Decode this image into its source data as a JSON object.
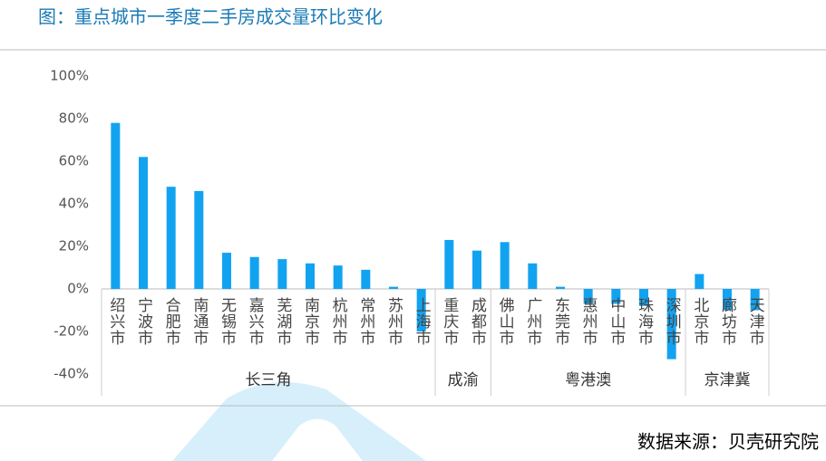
{
  "chart_data": {
    "type": "bar",
    "title": "图：重点城市一季度二手房成交量环比变化",
    "source": "数据来源：贝壳研究院",
    "color": "#12a3f0",
    "groups": [
      {
        "name": "长三角",
        "categories": [
          "绍兴市",
          "宁波市",
          "合肥市",
          "南通市",
          "无锡市",
          "嘉兴市",
          "芜湖市",
          "南京市",
          "杭州市",
          "常州市",
          "苏州市",
          "上海市"
        ],
        "values": [
          78,
          62,
          48,
          46,
          17,
          15,
          14,
          12,
          11,
          9,
          1,
          -20
        ]
      },
      {
        "name": "成渝",
        "categories": [
          "重庆市",
          "成都市"
        ],
        "values": [
          23,
          18
        ]
      },
      {
        "name": "粤港澳",
        "categories": [
          "佛山市",
          "广州市",
          "东莞市",
          "惠州市",
          "中山市",
          "珠海市",
          "深圳市"
        ],
        "values": [
          22,
          12,
          1,
          -7,
          -7,
          -8,
          -33
        ]
      },
      {
        "name": "京津冀",
        "categories": [
          "北京市",
          "廊坊市",
          "天津市"
        ],
        "values": [
          7,
          -10,
          -10
        ]
      }
    ],
    "ylim": [
      -40,
      100
    ],
    "yticks": [
      {
        "value": -40,
        "label": "-40%"
      },
      {
        "value": -20,
        "label": "-20%"
      },
      {
        "value": 0,
        "label": "0%"
      },
      {
        "value": 20,
        "label": "20%"
      },
      {
        "value": 40,
        "label": "40%"
      },
      {
        "value": 60,
        "label": "60%"
      },
      {
        "value": 80,
        "label": "80%"
      },
      {
        "value": 100,
        "label": "100%"
      }
    ]
  }
}
